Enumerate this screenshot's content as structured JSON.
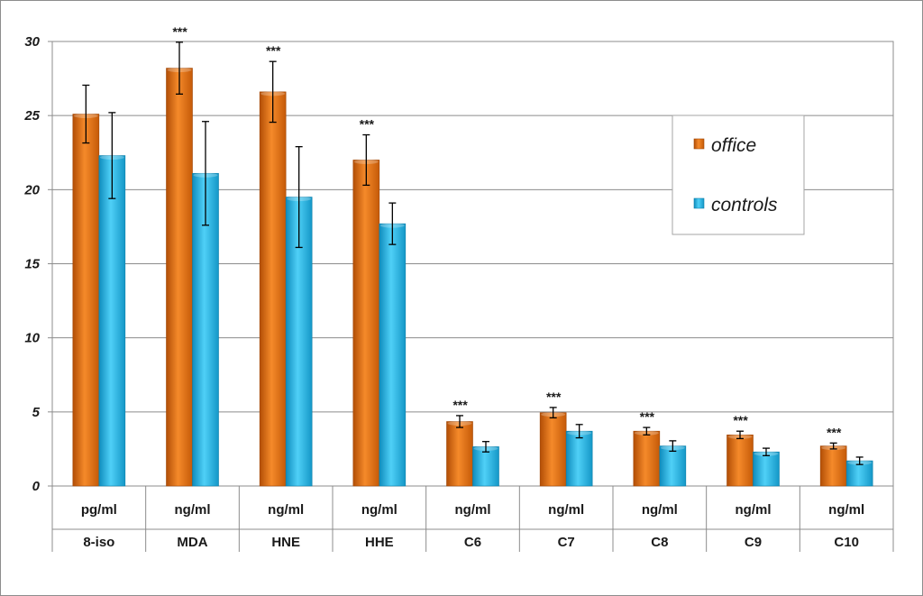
{
  "chart_data": {
    "type": "bar",
    "categories": [
      "8-iso",
      "MDA",
      "HNE",
      "HHE",
      "C6",
      "C7",
      "C8",
      "C9",
      "C10"
    ],
    "units": [
      "pg/ml",
      "ng/ml",
      "ng/ml",
      "ng/ml",
      "ng/ml",
      "ng/ml",
      "ng/ml",
      "ng/ml",
      "ng/ml"
    ],
    "series": [
      {
        "name": "office",
        "color": "#e46c0a",
        "values": [
          25.1,
          28.2,
          26.6,
          22.0,
          4.35,
          4.95,
          3.7,
          3.45,
          2.7
        ],
        "errors": [
          1.95,
          1.75,
          2.05,
          1.7,
          0.4,
          0.35,
          0.25,
          0.25,
          0.2
        ]
      },
      {
        "name": "controls",
        "color": "#1fb1e6",
        "values": [
          22.3,
          21.1,
          19.5,
          17.7,
          2.65,
          3.7,
          2.7,
          2.3,
          1.7
        ],
        "errors": [
          2.9,
          3.5,
          3.4,
          1.4,
          0.35,
          0.45,
          0.35,
          0.25,
          0.25
        ]
      }
    ],
    "significance": [
      "",
      "***",
      "***",
      "***",
      "***",
      "***",
      "***",
      "***",
      "***"
    ],
    "yticks": [
      0,
      5,
      10,
      15,
      20,
      25,
      30
    ],
    "ylim": [
      0,
      30
    ],
    "grid": true,
    "legend_position": "top-right",
    "title": "",
    "xlabel": "",
    "ylabel": ""
  }
}
